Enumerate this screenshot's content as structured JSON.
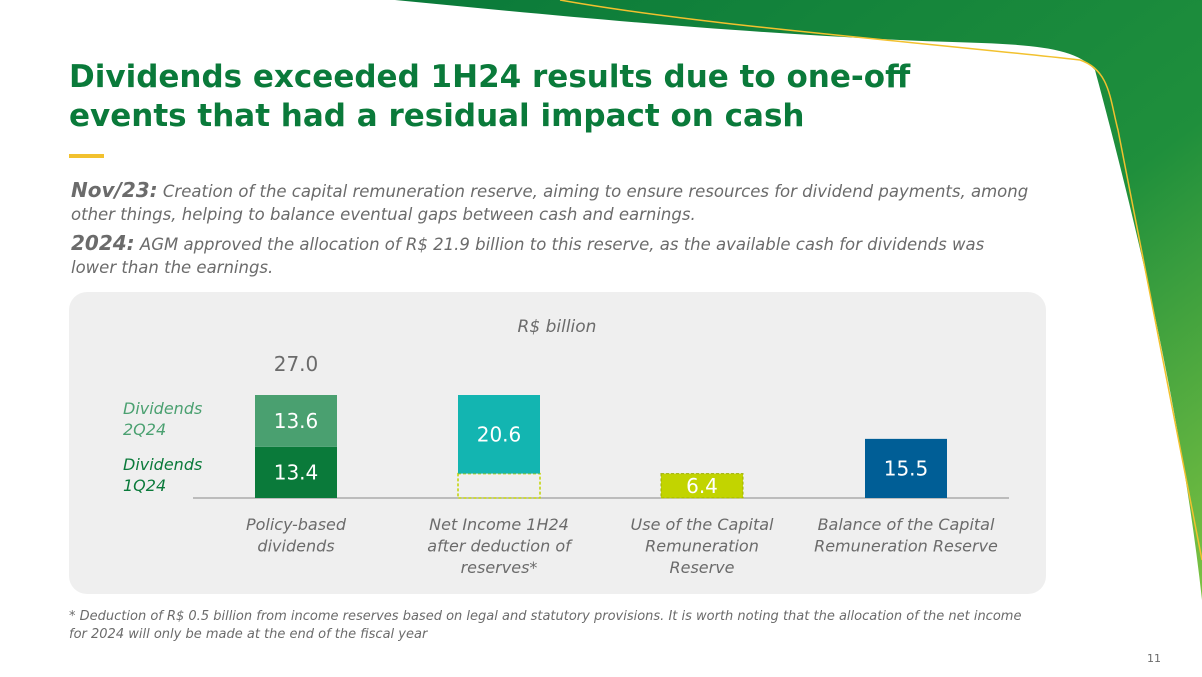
{
  "slide": {
    "title": "Dividends exceeded 1H24 results due to one-off events that had a residual impact on cash",
    "page_number": "11",
    "footnote": "* Deduction of R$ 0.5 billion from income reserves based on legal and statutory provisions. It is worth noting that the allocation of the net income for 2024 will only be made at the end of the fiscal year"
  },
  "paragraphs": [
    {
      "lead": "Nov/23:",
      "text": " Creation of the capital remuneration reserve, aiming to ensure resources for dividend payments, among other things, helping to balance eventual gaps between cash and earnings."
    },
    {
      "lead": "2024:",
      "text": " AGM approved the allocation of R$ 21.9 billion to this reserve, as the available cash for dividends was lower than the earnings."
    }
  ],
  "chart_data": {
    "type": "bar",
    "title": "R$ billion",
    "categories": [
      [
        "Policy-based",
        "dividends"
      ],
      [
        "Net Income 1H24",
        "after deduction of",
        "reserves*"
      ],
      [
        "Use of the Capital",
        "Remuneration",
        "Reserve"
      ],
      [
        "Balance of the Capital",
        "Remuneration Reserve"
      ]
    ],
    "series": [
      {
        "name": "Dividends 1Q24",
        "values": [
          13.4,
          null,
          null,
          null
        ],
        "color": "#0a7a3a"
      },
      {
        "name": "Dividends 2Q24",
        "values": [
          13.6,
          null,
          null,
          null
        ],
        "color": "#4aa070"
      },
      {
        "name": "Net Income 1H24 after deduction of reserves",
        "values": [
          null,
          20.6,
          null,
          null
        ],
        "color": "#13b5b1"
      },
      {
        "name": "Use of the Capital Remuneration Reserve",
        "values": [
          null,
          null,
          6.4,
          null
        ],
        "color": "#c2d400"
      },
      {
        "name": "Balance of the Capital Remuneration Reserve",
        "values": [
          null,
          null,
          null,
          15.5
        ],
        "color": "#005e96"
      }
    ],
    "totals": [
      27.0,
      null,
      null,
      null
    ],
    "total_labels": [
      "27.0"
    ],
    "value_labels": [
      "13.4",
      "13.6",
      "20.6",
      "6.4",
      "15.5"
    ],
    "legend": [
      {
        "label": [
          "Dividends",
          "2Q24"
        ],
        "color": "#4aa070"
      },
      {
        "label": [
          "Dividends",
          "1Q24"
        ],
        "color": "#0a7a3a"
      }
    ],
    "ylim": [
      0,
      27.0
    ]
  }
}
